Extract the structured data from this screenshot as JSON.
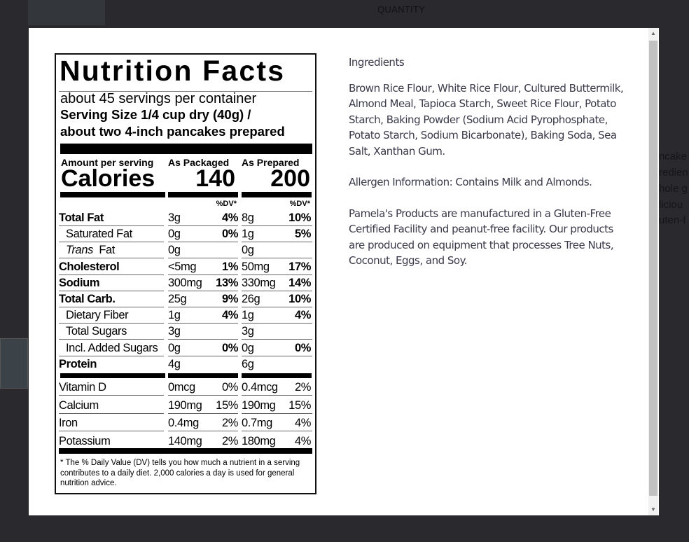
{
  "background": {
    "quantity_label": "QUANTITY",
    "fragments": [
      "ncake",
      "redien",
      "hole g",
      "liciou",
      "uten-f"
    ]
  },
  "nutrition": {
    "title": "Nutrition Facts",
    "servings": "about 45 servings per container",
    "serving_size_line1": "Serving Size 1/4 cup dry (40g) /",
    "serving_size_line2": "about two 4-inch pancakes prepared",
    "amount_per_serving": "Amount per serving",
    "calories_label": "Calories",
    "col_packaged": "As Packaged",
    "col_prepared": "As Prepared",
    "calories_packaged": "140",
    "calories_prepared": "200",
    "dv_header": "%DV*",
    "rows": [
      {
        "name": "Total Fat",
        "bold": true,
        "indent": false,
        "p_amt": "3g",
        "p_dv": "4%",
        "r_amt": "8g",
        "r_dv": "10%"
      },
      {
        "name": "Saturated Fat",
        "bold": false,
        "indent": true,
        "p_amt": "0g",
        "p_dv": "0%",
        "r_amt": "1g",
        "r_dv": "5%"
      },
      {
        "name": "Trans Fat",
        "bold": false,
        "indent": true,
        "italic_prefix": "Trans",
        "p_amt": "0g",
        "p_dv": "",
        "r_amt": "0g",
        "r_dv": ""
      },
      {
        "name": "Cholesterol",
        "bold": true,
        "indent": false,
        "p_amt": "<5mg",
        "p_dv": "1%",
        "r_amt": "50mg",
        "r_dv": "17%"
      },
      {
        "name": "Sodium",
        "bold": true,
        "indent": false,
        "p_amt": "300mg",
        "p_dv": "13%",
        "r_amt": "330mg",
        "r_dv": "14%"
      },
      {
        "name": "Total Carb.",
        "bold": true,
        "indent": false,
        "p_amt": "25g",
        "p_dv": "9%",
        "r_amt": "26g",
        "r_dv": "10%"
      },
      {
        "name": "Dietary Fiber",
        "bold": false,
        "indent": true,
        "p_amt": "1g",
        "p_dv": "4%",
        "r_amt": "1g",
        "r_dv": "4%"
      },
      {
        "name": "Total Sugars",
        "bold": false,
        "indent": true,
        "p_amt": "3g",
        "p_dv": "",
        "r_amt": "3g",
        "r_dv": ""
      },
      {
        "name": "Incl. Added Sugars",
        "bold": false,
        "indent": true,
        "p_amt": "0g",
        "p_dv": "0%",
        "r_amt": "0g",
        "r_dv": "0%"
      },
      {
        "name": "Protein",
        "bold": true,
        "indent": false,
        "p_amt": "4g",
        "p_dv": "",
        "r_amt": "6g",
        "r_dv": ""
      }
    ],
    "minerals": [
      {
        "name": "Vitamin D",
        "p_amt": "0mcg",
        "p_dv": "0%",
        "r_amt": "0.4mcg",
        "r_dv": "2%"
      },
      {
        "name": "Calcium",
        "p_amt": "190mg",
        "p_dv": "15%",
        "r_amt": "190mg",
        "r_dv": "15%"
      },
      {
        "name": "Iron",
        "p_amt": "0.4mg",
        "p_dv": "2%",
        "r_amt": "0.7mg",
        "r_dv": "4%"
      },
      {
        "name": "Potassium",
        "p_amt": "140mg",
        "p_dv": "2%",
        "r_amt": "180mg",
        "r_dv": "4%"
      }
    ],
    "footnote": "* The % Daily Value (DV) tells you how much a nutrient in a serving contributes to a daily diet. 2,000 calories a day is used for general nutrition advice."
  },
  "info": {
    "ingredients_heading": "Ingredients",
    "ingredients": "Brown Rice Flour, White Rice Flour, Cultured Buttermilk, Almond Meal, Tapioca Starch, Sweet Rice Flour, Potato Starch, Baking Powder (Sodium Acid Pyrophosphate, Potato Starch, Sodium Bicarbonate), Baking Soda, Sea Salt, Xanthan Gum.",
    "allergen": "Allergen Information: Contains Milk and Almonds.",
    "facility": "Pamela's Products are manufactured in a Gluten-Free Certified Facility and peanut-free facility. Our products are produced on equipment that processes Tree Nuts, Coconut, Eggs, and Soy."
  },
  "scrollbar": {
    "up": "▲",
    "down": "▼"
  }
}
